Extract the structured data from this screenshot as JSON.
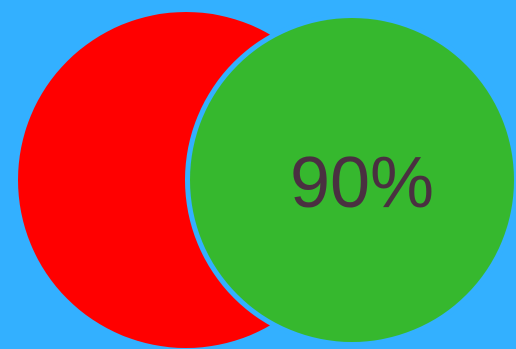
{
  "colors": {
    "background": "#33b0ff",
    "left_circle": "#ff0000",
    "right_circle": "#36b82e",
    "label": "#4a3041"
  },
  "widget": {
    "percent_label": "90%"
  }
}
